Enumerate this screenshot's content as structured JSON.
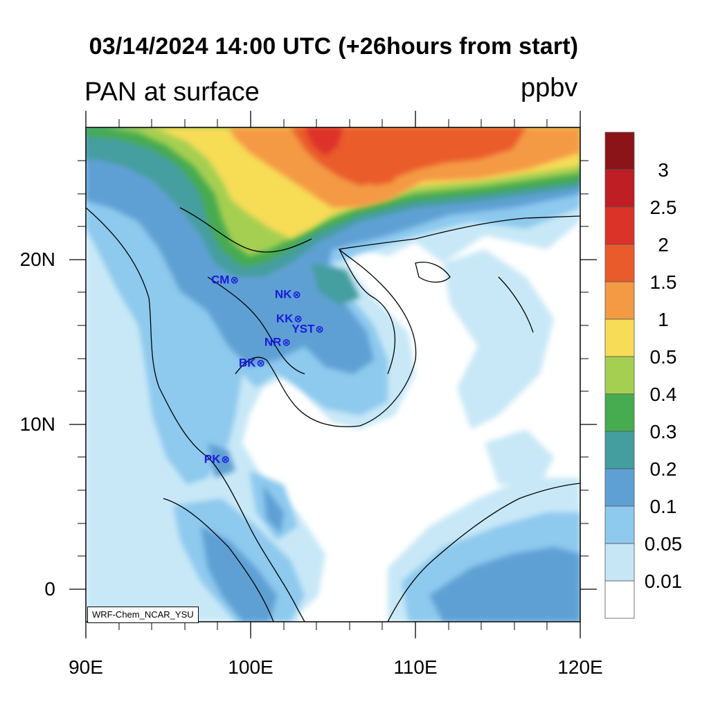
{
  "title": "03/14/2024 14:00 UTC (+26hours from start)",
  "subtitle_left": "PAN at surface",
  "subtitle_right": "ppbv",
  "credit": "WRF-Chem_NCAR_YSU",
  "map": {
    "lon_range": [
      90,
      120
    ],
    "lat_range": [
      -2,
      28
    ],
    "lat_labels": [
      "20N",
      "10N",
      "0"
    ],
    "lon_labels": [
      "90E",
      "100E",
      "110E",
      "120E"
    ],
    "field_description": "surface PAN concentration contours",
    "colors": {
      "ocean_low": "#ffffff",
      "land_edge": "#c8e8f7"
    }
  },
  "stations": [
    {
      "code": "CM",
      "marker": "⊗",
      "lon": 99.0,
      "lat": 18.8
    },
    {
      "code": "NK",
      "marker": "⊗",
      "lon": 102.7,
      "lat": 17.9
    },
    {
      "code": "KK",
      "marker": "⊗",
      "lon": 102.8,
      "lat": 16.4
    },
    {
      "code": "YST",
      "marker": "⊗",
      "lon": 104.1,
      "lat": 15.8
    },
    {
      "code": "NR",
      "marker": "⊗",
      "lon": 102.1,
      "lat": 15.0
    },
    {
      "code": "BK",
      "marker": "⊗",
      "lon": 100.5,
      "lat": 13.8
    },
    {
      "code": "PK",
      "marker": "⊗",
      "lon": 98.4,
      "lat": 7.9
    }
  ],
  "colorbar": {
    "labels": [
      "3",
      "2.5",
      "2",
      "1.5",
      "1",
      "0.5",
      "0.4",
      "0.3",
      "0.2",
      "0.1",
      "0.05",
      "0.01"
    ],
    "colors": [
      "#8b1418",
      "#be1e24",
      "#dc3329",
      "#ea5b2b",
      "#f49a44",
      "#f7dc57",
      "#a5cf51",
      "#47ab4f",
      "#449e9f",
      "#5ea0d4",
      "#8ec9ee",
      "#c6e6f6",
      "#ffffff"
    ]
  }
}
